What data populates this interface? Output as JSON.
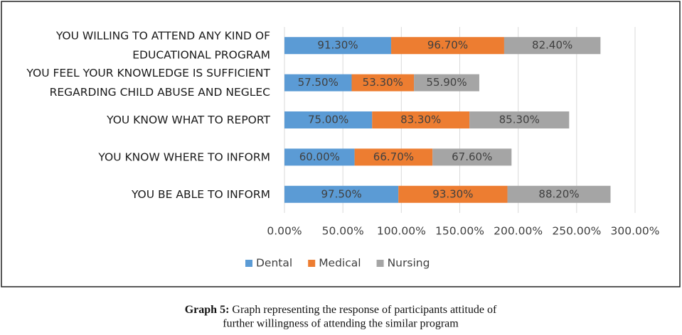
{
  "chart_data": {
    "type": "stacked-barh",
    "categories": [
      [
        "YOU WILLING TO ATTEND ANY KIND OF",
        "EDUCATIONAL PROGRAM"
      ],
      [
        "YOU FEEL YOUR KNOWLEDGE IS SUFFICIENT",
        "REGARDING CHILD ABUSE AND NEGLEC"
      ],
      [
        "YOU KNOW WHAT TO REPORT"
      ],
      [
        "YOU KNOW WHERE TO INFORM"
      ],
      [
        "YOU BE ABLE TO INFORM"
      ]
    ],
    "series": [
      {
        "name": "Dental",
        "color": "#5b9bd5",
        "values": [
          91.3,
          57.5,
          75.0,
          60.0,
          97.5
        ],
        "value_labels": [
          "91.30%",
          "57.50%",
          "75.00%",
          "60.00%",
          "97.50%"
        ]
      },
      {
        "name": "Medical",
        "color": "#ed7d31",
        "values": [
          96.7,
          53.3,
          83.3,
          66.7,
          93.3
        ],
        "value_labels": [
          "96.70%",
          "53.30%",
          "83.30%",
          "66.70%",
          "93.30%"
        ]
      },
      {
        "name": "Nursing",
        "color": "#a5a5a5",
        "values": [
          82.4,
          55.9,
          85.3,
          67.6,
          88.2
        ],
        "value_labels": [
          "82.40%",
          "55.90%",
          "85.30%",
          "67.60%",
          "88.20%"
        ]
      }
    ],
    "xlim": [
      0,
      300
    ],
    "xticks": [
      {
        "value": 0,
        "label": "0.00%"
      },
      {
        "value": 50,
        "label": "50.00%"
      },
      {
        "value": 100,
        "label": "100.00%"
      },
      {
        "value": 150,
        "label": "150.00%"
      },
      {
        "value": 200,
        "label": "200.00%"
      },
      {
        "value": 250,
        "label": "250.00%"
      },
      {
        "value": 300,
        "label": "300.00%"
      }
    ],
    "grid": true,
    "legend": "bottom"
  },
  "caption": {
    "label": "Graph 5:",
    "lines": [
      "Graph representing the response of participants attitude of",
      "further willingness of attending the similar program"
    ]
  }
}
